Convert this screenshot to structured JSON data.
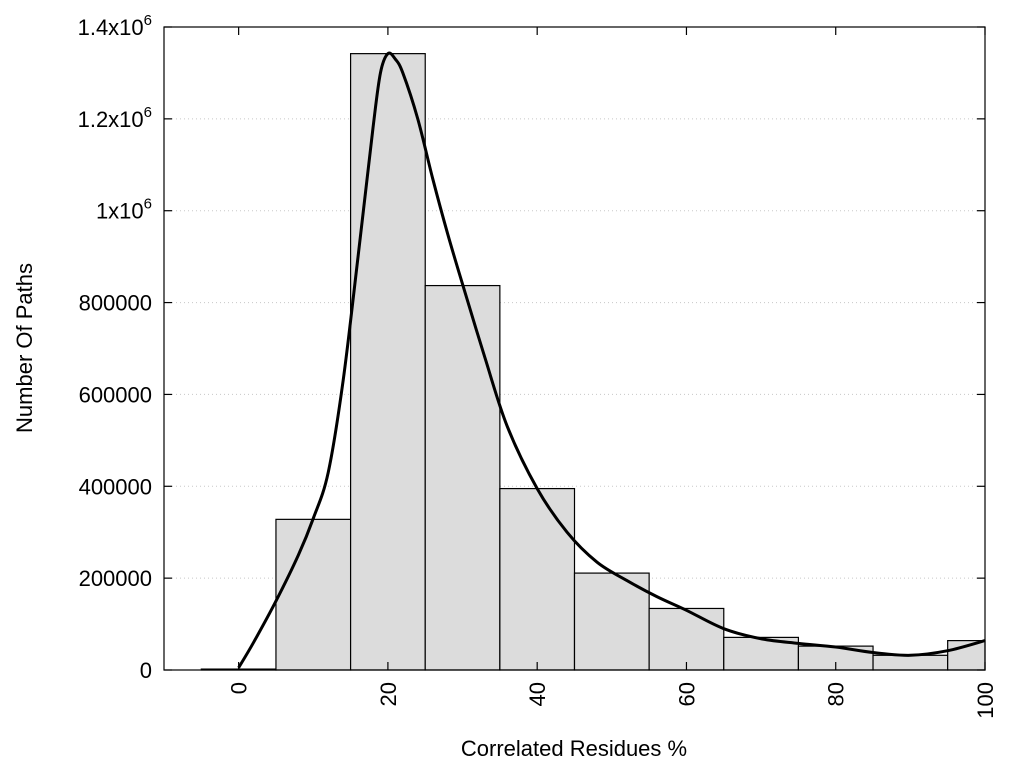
{
  "chart_data": {
    "type": "bar",
    "title": "",
    "xlabel": "Correlated Residues %",
    "ylabel": "Number Of Paths",
    "xlim": [
      -10,
      100
    ],
    "ylim": [
      0,
      1400000
    ],
    "grid": true,
    "bar_width": 10,
    "x": [
      0,
      10,
      20,
      30,
      40,
      50,
      60,
      70,
      80,
      90,
      100
    ],
    "values": [
      2000,
      328000,
      1342000,
      837000,
      395000,
      211000,
      134000,
      71000,
      52000,
      32000,
      64000
    ],
    "xticks": [
      {
        "value": 0,
        "label": "0"
      },
      {
        "value": 20,
        "label": "20"
      },
      {
        "value": 40,
        "label": "40"
      },
      {
        "value": 60,
        "label": "60"
      },
      {
        "value": 80,
        "label": "80"
      },
      {
        "value": 100,
        "label": "100"
      }
    ],
    "yticks": [
      {
        "value": 0,
        "label": "0",
        "exp": ""
      },
      {
        "value": 200000,
        "label": "200000",
        "exp": ""
      },
      {
        "value": 400000,
        "label": "400000",
        "exp": ""
      },
      {
        "value": 600000,
        "label": "600000",
        "exp": ""
      },
      {
        "value": 800000,
        "label": "800000",
        "exp": ""
      },
      {
        "value": 1000000,
        "label": "1x10",
        "exp": "6"
      },
      {
        "value": 1200000,
        "label": "1.2x10",
        "exp": "6"
      },
      {
        "value": 1400000,
        "label": "1.4x10",
        "exp": "6"
      }
    ],
    "curve": [
      [
        0,
        5000
      ],
      [
        2,
        60000
      ],
      [
        5,
        150000
      ],
      [
        8,
        250000
      ],
      [
        10,
        330000
      ],
      [
        12,
        430000
      ],
      [
        14,
        630000
      ],
      [
        16,
        900000
      ],
      [
        18,
        1180000
      ],
      [
        19,
        1300000
      ],
      [
        20,
        1342000
      ],
      [
        21,
        1330000
      ],
      [
        22,
        1300000
      ],
      [
        24,
        1200000
      ],
      [
        26,
        1070000
      ],
      [
        28,
        950000
      ],
      [
        30,
        840000
      ],
      [
        33,
        680000
      ],
      [
        36,
        530000
      ],
      [
        40,
        395000
      ],
      [
        44,
        300000
      ],
      [
        48,
        235000
      ],
      [
        52,
        195000
      ],
      [
        56,
        160000
      ],
      [
        60,
        130000
      ],
      [
        65,
        90000
      ],
      [
        70,
        68000
      ],
      [
        75,
        58000
      ],
      [
        80,
        50000
      ],
      [
        85,
        38000
      ],
      [
        90,
        32000
      ],
      [
        95,
        42000
      ],
      [
        100,
        64000
      ]
    ]
  }
}
